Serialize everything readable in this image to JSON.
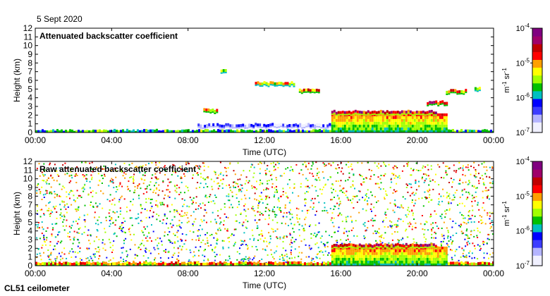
{
  "header": {
    "date": "5 Sept 2020"
  },
  "footer": {
    "instrument": "CL51 ceilometer"
  },
  "colors": {
    "colormap": [
      "#f0f0ff",
      "#b4b4ff",
      "#3c3cff",
      "#0000ff",
      "#00c0c0",
      "#00c000",
      "#a0ff00",
      "#ffff00",
      "#ffa000",
      "#ff0000",
      "#c00000",
      "#a0006a",
      "#800080"
    ]
  },
  "chart_data": [
    {
      "type": "heatmap",
      "title": "Attenuated backscatter coefficient",
      "xlabel": "Time (UTC)",
      "ylabel": "Height (km)",
      "xlim": [
        0,
        24
      ],
      "ylim": [
        0,
        12
      ],
      "x_ticks": [
        "00:00",
        "04:00",
        "08:00",
        "12:00",
        "16:00",
        "20:00",
        "00:00"
      ],
      "y_ticks": [
        "0",
        "1",
        "2",
        "3",
        "4",
        "5",
        "6",
        "7",
        "8",
        "9",
        "10",
        "11",
        "12"
      ],
      "colorbar": {
        "scale": "log",
        "range": [
          1e-07,
          0.0001
        ],
        "labels": [
          "10-7",
          "10-6",
          "10-5",
          "10-4"
        ],
        "units": "m-1 sr-1"
      },
      "features": [
        {
          "name": "surface layer",
          "t_start": 0,
          "t_end": 24,
          "h_top": 0.3,
          "level": 0.55
        },
        {
          "name": "boundary layer",
          "t_start": 8.5,
          "t_end": 15.5,
          "h_top": 1.0,
          "level": 0.3
        },
        {
          "name": "low cloud layer",
          "t_start": 15.5,
          "t_end": 21.5,
          "h_bottom": 0,
          "h_top": 2.2,
          "level": 0.7
        },
        {
          "name": "cloud base",
          "t_start": 15.5,
          "t_end": 21.0,
          "h_top": 2.5,
          "level": 0.95
        },
        {
          "name": "rising cloud",
          "t_start": 20.5,
          "t_end": 21.6,
          "h_top": 3.6,
          "level": 0.9
        },
        {
          "name": "elevated cloud",
          "t_start": 8.8,
          "t_end": 9.5,
          "h_top": 2.7,
          "level": 0.8
        },
        {
          "name": "elevated cloud",
          "t_start": 9.7,
          "t_end": 10.0,
          "h_top": 7.3,
          "level": 0.7
        },
        {
          "name": "elevated cloud",
          "t_start": 11.5,
          "t_end": 13.5,
          "h_top": 5.8,
          "level": 0.75
        },
        {
          "name": "elevated cloud",
          "t_start": 13.8,
          "t_end": 14.8,
          "h_top": 5.0,
          "level": 0.85
        },
        {
          "name": "elevated cloud",
          "t_start": 21.5,
          "t_end": 22.5,
          "h_top": 4.9,
          "level": 0.8
        },
        {
          "name": "elevated cloud",
          "t_start": 23.0,
          "t_end": 23.3,
          "h_top": 5.2,
          "level": 0.7
        }
      ]
    },
    {
      "type": "heatmap",
      "title": "Raw attenuated backscatter coefficient",
      "xlabel": "Time (UTC)",
      "ylabel": "Height (km)",
      "xlim": [
        0,
        24
      ],
      "ylim": [
        0,
        12
      ],
      "x_ticks": [
        "00:00",
        "04:00",
        "08:00",
        "12:00",
        "16:00",
        "20:00",
        "00:00"
      ],
      "y_ticks": [
        "0",
        "1",
        "2",
        "3",
        "4",
        "5",
        "6",
        "7",
        "8",
        "9",
        "10",
        "11",
        "12"
      ],
      "colorbar": {
        "scale": "log",
        "range": [
          1e-07,
          0.0001
        ],
        "labels": [
          "10-7",
          "10-6",
          "10-5",
          "10-4"
        ],
        "units": "m-1 sr-1"
      },
      "features": [
        {
          "name": "noise field",
          "t_start": 0,
          "t_end": 24,
          "h_bottom": 0,
          "h_top": 12,
          "level": 0.45
        },
        {
          "name": "surface layer",
          "t_start": 0,
          "t_end": 24,
          "h_top": 0.4,
          "level": 0.8
        },
        {
          "name": "low cloud layer",
          "t_start": 15.5,
          "t_end": 21.5,
          "h_bottom": 0,
          "h_top": 2.2,
          "level": 0.7
        },
        {
          "name": "cloud base",
          "t_start": 15.5,
          "t_end": 21.0,
          "h_top": 2.5,
          "level": 0.95
        }
      ]
    }
  ]
}
